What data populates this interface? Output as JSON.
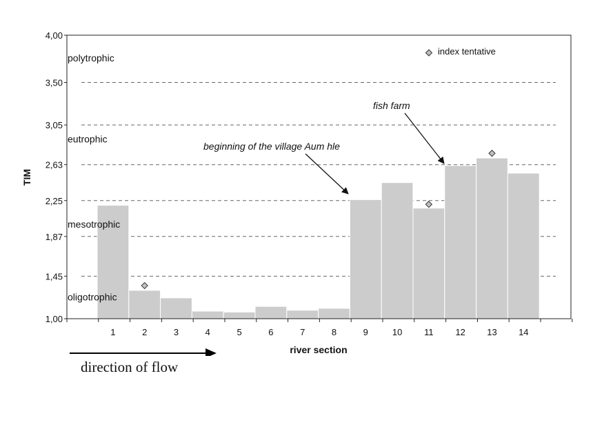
{
  "chart_data": {
    "type": "bar",
    "xlabel": "river section",
    "ylabel": "TIM",
    "categories": [
      "1",
      "2",
      "3",
      "4",
      "5",
      "6",
      "7",
      "8",
      "9",
      "10",
      "11",
      "12",
      "13",
      "14"
    ],
    "values": [
      2.2,
      1.3,
      1.22,
      1.08,
      1.07,
      1.13,
      1.09,
      1.11,
      2.26,
      2.44,
      2.17,
      2.62,
      2.7,
      2.54
    ],
    "ylim": [
      1.0,
      4.0
    ],
    "yticks": [
      "1,00",
      "1,45",
      "1,87",
      "2,25",
      "2,63",
      "3,05",
      "3,50",
      "4,00"
    ],
    "ytick_values": [
      1.0,
      1.45,
      1.87,
      2.25,
      2.63,
      3.05,
      3.5,
      4.0
    ],
    "dashed_lines_at": [
      1.45,
      1.87,
      2.25,
      2.63,
      3.05,
      3.5
    ],
    "bar_color": "#cccccc",
    "tentative_points": [
      {
        "x": "2",
        "y": 1.35
      },
      {
        "x": "11",
        "y": 2.21
      },
      {
        "x": "13",
        "y": 2.75
      }
    ],
    "trophic_labels": [
      {
        "text": "polytrophic",
        "y": 3.76
      },
      {
        "text": "eutrophic",
        "y": 2.9
      },
      {
        "text": "mesotrophic",
        "y": 2.0
      },
      {
        "text": "oligotrophic",
        "y": 1.23
      }
    ],
    "legend": {
      "label": "index tentative",
      "marker": "diamond",
      "placement": "top-right"
    },
    "annotations": [
      {
        "text": "beginning of the village Aum  hle",
        "points_to": "9"
      },
      {
        "text": "fish farm",
        "points_to": "12"
      }
    ]
  },
  "flow": {
    "label": "direction of flow"
  }
}
